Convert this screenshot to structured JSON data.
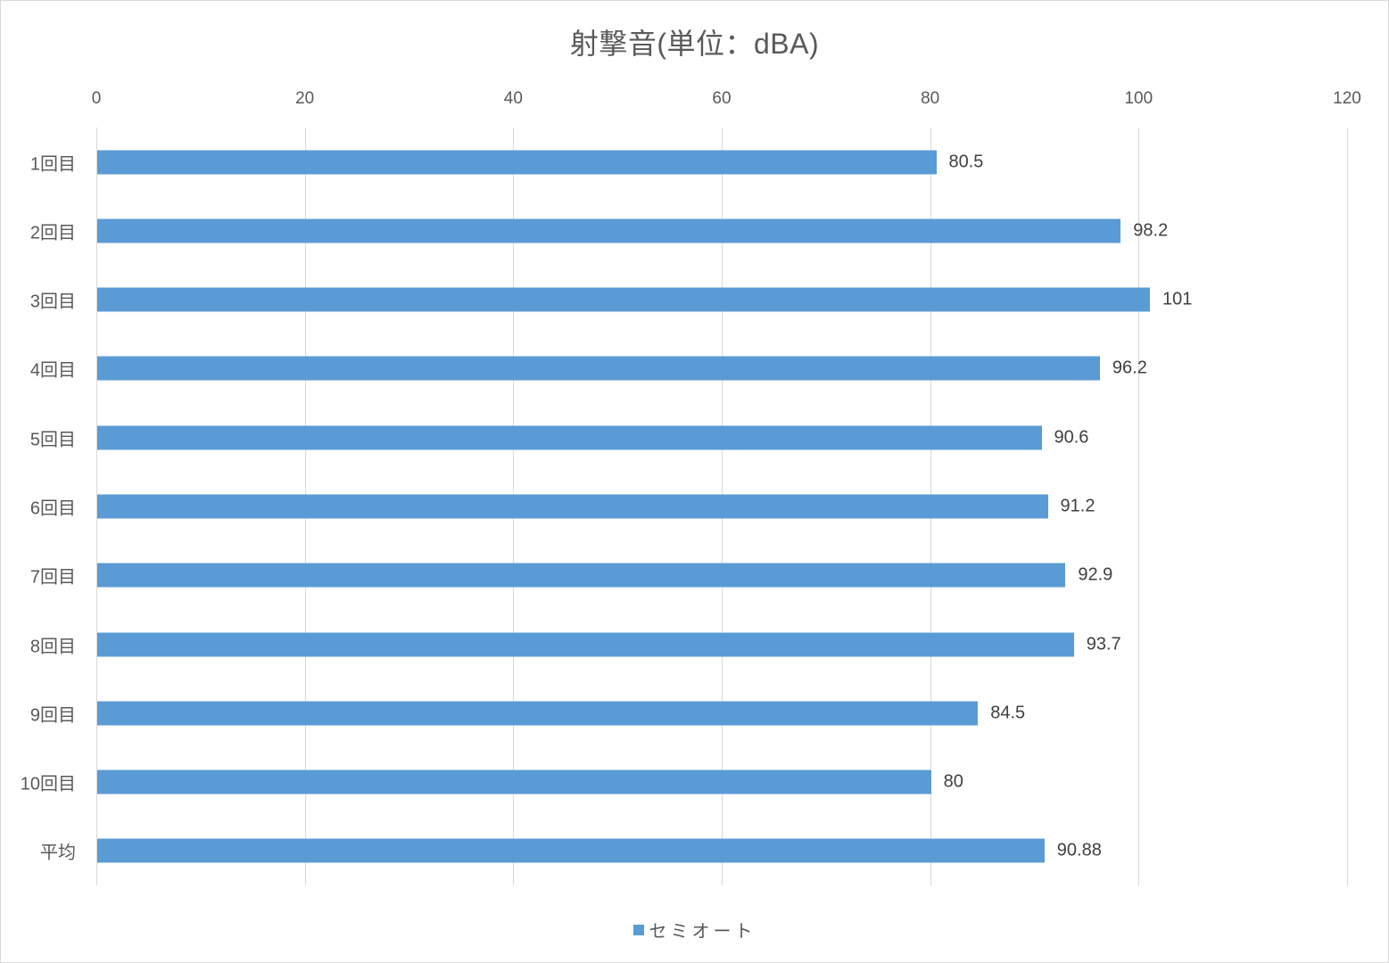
{
  "chart_data": {
    "type": "bar",
    "orientation": "horizontal",
    "title": "射撃音(単位：dBA)",
    "xlabel": "",
    "ylabel": "",
    "xlim": [
      0,
      120
    ],
    "x_ticks": [
      0,
      20,
      40,
      60,
      80,
      100,
      120
    ],
    "grid": true,
    "legend_position": "bottom",
    "categories": [
      "1回目",
      "2回目",
      "3回目",
      "4回目",
      "5回目",
      "6回目",
      "7回目",
      "8回目",
      "9回目",
      "10回目",
      "平均"
    ],
    "series": [
      {
        "name": "セミオート",
        "color": "#5b9bd5",
        "values": [
          80.5,
          98.2,
          101,
          96.2,
          90.6,
          91.2,
          92.9,
          93.7,
          84.5,
          80,
          90.88
        ],
        "labels": [
          "80.5",
          "98.2",
          "101",
          "96.2",
          "90.6",
          "91.2",
          "92.9",
          "93.7",
          "84.5",
          "80",
          "90.88"
        ]
      }
    ]
  },
  "title": "射撃音(単位：dBA)",
  "x_ticks": [
    "0",
    "20",
    "40",
    "60",
    "80",
    "100",
    "120"
  ],
  "categories": [
    "1回目",
    "2回目",
    "3回目",
    "4回目",
    "5回目",
    "6回目",
    "7回目",
    "8回目",
    "9回目",
    "10回目",
    "平均"
  ],
  "value_labels": [
    "80.5",
    "98.2",
    "101",
    "96.2",
    "90.6",
    "91.2",
    "92.9",
    "93.7",
    "84.5",
    "80",
    "90.88"
  ],
  "legend": {
    "label": "セミオート",
    "color": "#5b9bd5"
  }
}
